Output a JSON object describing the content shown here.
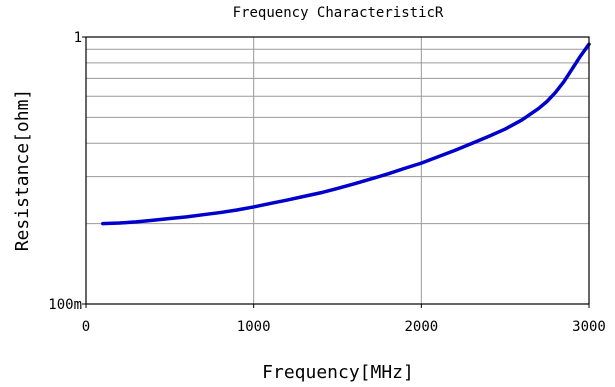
{
  "chart_data": {
    "type": "line",
    "title": "Frequency  CharacteristicR",
    "xlabel": "Frequency[MHz]",
    "ylabel": "Resistance[ohm]",
    "x_scale": "linear",
    "y_scale": "log",
    "xlim": [
      0,
      3000
    ],
    "ylim": [
      0.1,
      1
    ],
    "x_tick_values": [
      0,
      1000,
      2000,
      3000
    ],
    "x_tick_labels": [
      "0",
      "1000",
      "2000",
      "3000"
    ],
    "y_tick_values": [
      0.1,
      1
    ],
    "y_tick_labels": [
      "100m",
      "1"
    ],
    "y_grid_values": [
      0.2,
      0.3,
      0.4,
      0.5,
      0.6,
      0.7,
      0.8,
      0.9
    ],
    "grid": true,
    "legend": "none",
    "series": [
      {
        "color": "#0000cc",
        "x": [
          100,
          200,
          300,
          400,
          500,
          600,
          700,
          800,
          900,
          1000,
          1100,
          1200,
          1300,
          1400,
          1500,
          1600,
          1700,
          1800,
          1900,
          2000,
          2100,
          2200,
          2300,
          2400,
          2500,
          2600,
          2700,
          2750,
          2800,
          2850,
          2900,
          2950,
          3000
        ],
        "y": [
          0.2,
          0.201,
          0.203,
          0.206,
          0.209,
          0.212,
          0.216,
          0.22,
          0.225,
          0.231,
          0.238,
          0.245,
          0.253,
          0.261,
          0.271,
          0.282,
          0.294,
          0.307,
          0.322,
          0.337,
          0.356,
          0.376,
          0.399,
          0.424,
          0.452,
          0.489,
          0.54,
          0.574,
          0.62,
          0.68,
          0.76,
          0.85,
          0.94
        ]
      }
    ]
  }
}
